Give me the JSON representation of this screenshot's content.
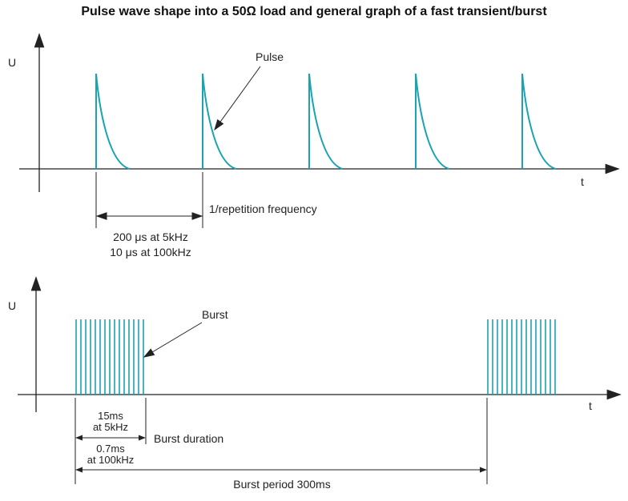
{
  "title": "Pulse wave shape into a 50Ω load and general graph of a fast transient/burst",
  "top": {
    "y_axis_label": "U",
    "x_axis_label": "t",
    "pulse_label": "Pulse",
    "rep_freq_label": "1/repetition frequency",
    "period_line1": "200 μs at 5kHz",
    "period_line2": "10 μs at 100kHz",
    "pulse_count": 5
  },
  "bottom": {
    "y_axis_label": "U",
    "x_axis_label": "t",
    "burst_label": "Burst",
    "dur_5k_line1": "15ms",
    "dur_5k_line2": "at 5kHz",
    "burst_duration_label": "Burst duration",
    "dur_100k_line1": "0.7ms",
    "dur_100k_line2": "at 100kHz",
    "burst_period_label": "Burst period 300ms",
    "lines_per_burst": 15
  },
  "colors": {
    "waveform": "#1aa3b0",
    "axis": "#222222"
  }
}
